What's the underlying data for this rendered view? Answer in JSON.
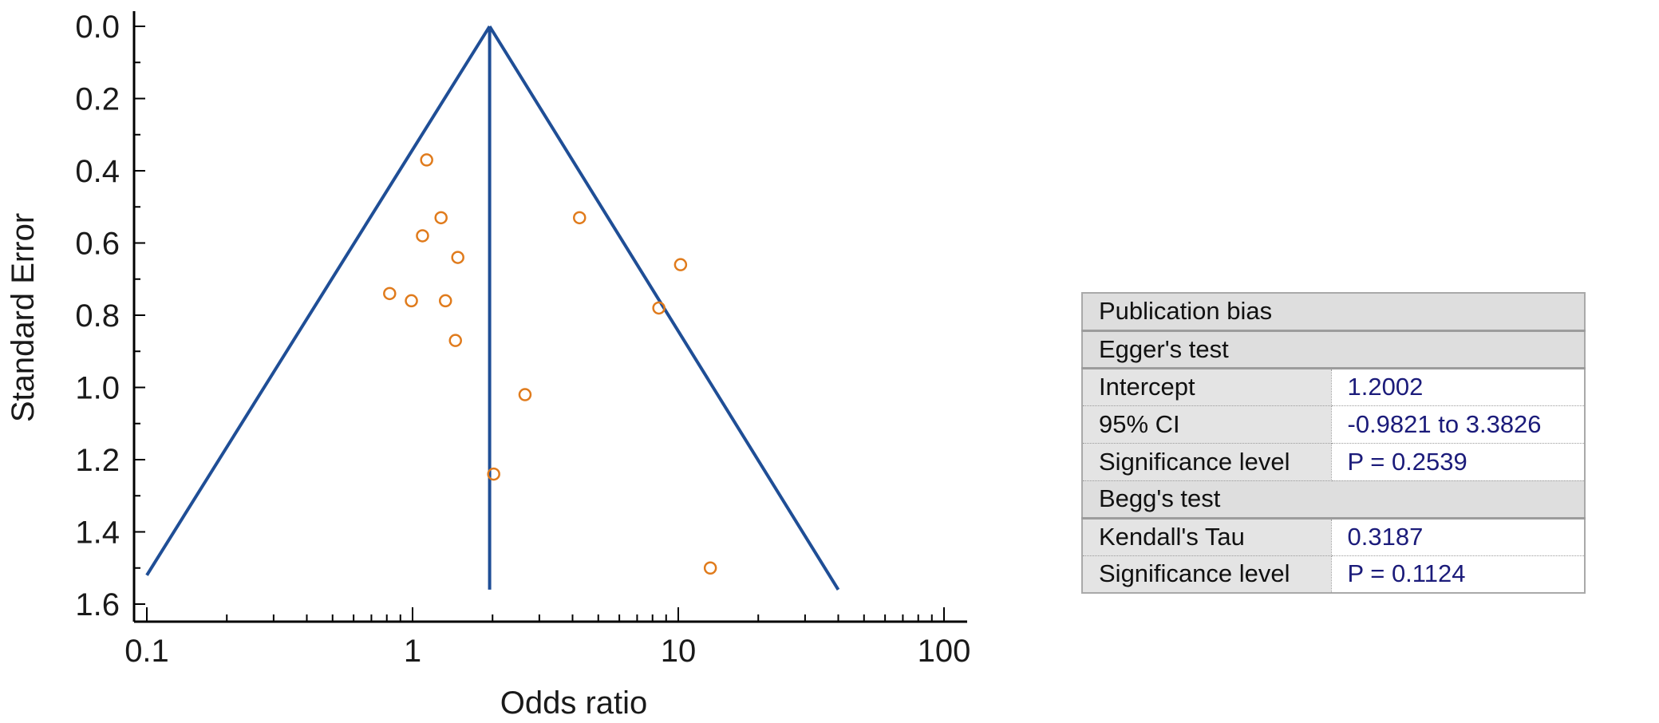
{
  "chart_data": {
    "type": "scatter",
    "subtype": "funnel-plot",
    "xlabel": "Odds ratio",
    "ylabel": "Standard Error",
    "x_scale": "log",
    "xlim": [
      0.1,
      100
    ],
    "ylim": [
      1.65,
      0.0
    ],
    "y_inverted": true,
    "x_ticks": [
      "0.1",
      "1",
      "10",
      "100"
    ],
    "y_ticks": [
      "0.0",
      "0.2",
      "0.4",
      "0.6",
      "0.8",
      "1.0",
      "1.2",
      "1.4",
      "1.6"
    ],
    "pooled_or": 1.95,
    "funnel": {
      "apex": {
        "x": 1.95,
        "y": 0.0
      },
      "left_end": {
        "x": 0.1,
        "y": 1.52
      },
      "right_end": {
        "x": 40,
        "y": 1.56
      },
      "center_line_bottom_se": 1.56
    },
    "points": [
      {
        "x": 1.13,
        "y": 0.37
      },
      {
        "x": 1.28,
        "y": 0.53
      },
      {
        "x": 1.09,
        "y": 0.58
      },
      {
        "x": 1.48,
        "y": 0.64
      },
      {
        "x": 0.82,
        "y": 0.74
      },
      {
        "x": 0.99,
        "y": 0.76
      },
      {
        "x": 1.33,
        "y": 0.76
      },
      {
        "x": 1.45,
        "y": 0.87
      },
      {
        "x": 4.25,
        "y": 0.53
      },
      {
        "x": 10.2,
        "y": 0.66
      },
      {
        "x": 8.45,
        "y": 0.78
      },
      {
        "x": 2.65,
        "y": 1.02
      },
      {
        "x": 2.02,
        "y": 1.24
      },
      {
        "x": 13.2,
        "y": 1.5
      }
    ],
    "grid": false,
    "colors": {
      "funnel": "#1f4e96",
      "points": "#e07b1c",
      "axis": "#000000"
    }
  },
  "bias_table": {
    "title": "Publication bias",
    "egger": {
      "heading": "Egger's test",
      "rows": [
        {
          "label": "Intercept",
          "value": "1.2002"
        },
        {
          "label": "95% CI",
          "value": "-0.9821 to 3.3826"
        },
        {
          "label": "Significance level",
          "value": "P = 0.2539"
        }
      ]
    },
    "begg": {
      "heading": "Begg's test",
      "rows": [
        {
          "label": "Kendall's Tau",
          "value": "0.3187"
        },
        {
          "label": "Significance level",
          "value": "P = 0.1124"
        }
      ]
    },
    "colors": {
      "value_text": "#1b1b7a",
      "label_bg": "#e4e4e4",
      "header_bg": "#dedede"
    }
  }
}
